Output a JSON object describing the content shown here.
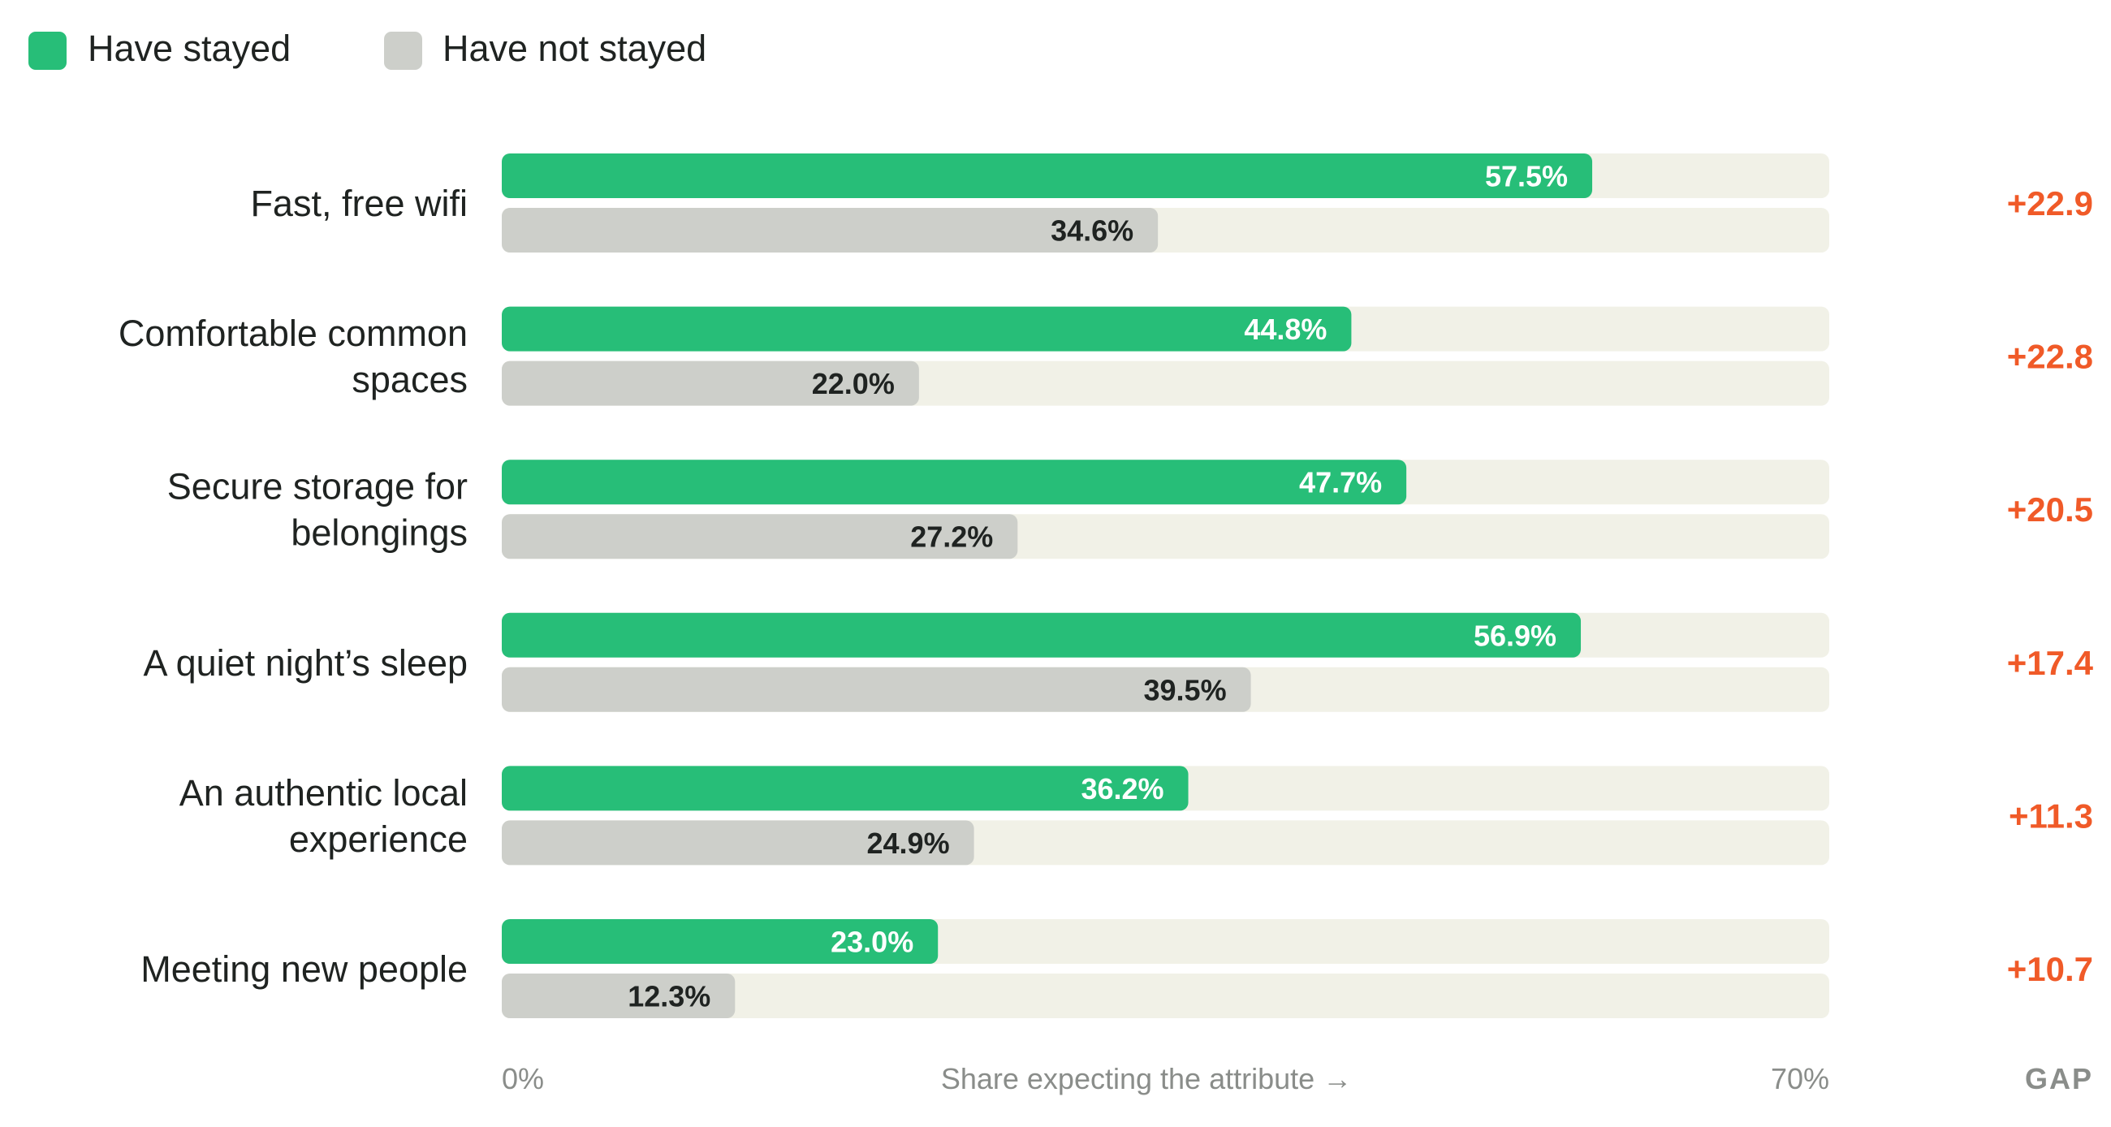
{
  "chart_data": {
    "type": "bar",
    "orientation": "horizontal",
    "categories": [
      [
        "Fast, free wifi"
      ],
      [
        "Comfortable common",
        "spaces"
      ],
      [
        "Secure storage for",
        "belongings"
      ],
      [
        "A quiet night’s sleep"
      ],
      [
        "An authentic local",
        "experience"
      ],
      [
        "Meeting new people"
      ]
    ],
    "series": [
      {
        "name": "Have stayed",
        "color": "#27be78",
        "label_color": "#ffffff",
        "values": [
          57.5,
          44.8,
          47.7,
          56.9,
          36.2,
          23.0
        ],
        "labels": [
          "57.5%",
          "44.8%",
          "47.7%",
          "56.9%",
          "36.2%",
          "23.0%"
        ]
      },
      {
        "name": "Have not stayed",
        "color": "#cdcfca",
        "label_color": "#1f2321",
        "values": [
          34.6,
          22.0,
          27.2,
          39.5,
          24.9,
          12.3
        ],
        "labels": [
          "34.6%",
          "22.0%",
          "27.2%",
          "39.5%",
          "24.9%",
          "12.3%"
        ]
      }
    ],
    "gap": {
      "header": "GAP",
      "color": "#f05a28",
      "labels": [
        "+22.9",
        "+22.8",
        "+20.5",
        "+17.4",
        "+11.3",
        "+10.7"
      ]
    },
    "track_color": "#f1f1e7",
    "xlim": [
      0,
      70
    ],
    "x_tick_labels": [
      "0%",
      "70%"
    ],
    "xlabel": "Share expecting the attribute →",
    "legend_position": "top-left",
    "grid": false
  }
}
